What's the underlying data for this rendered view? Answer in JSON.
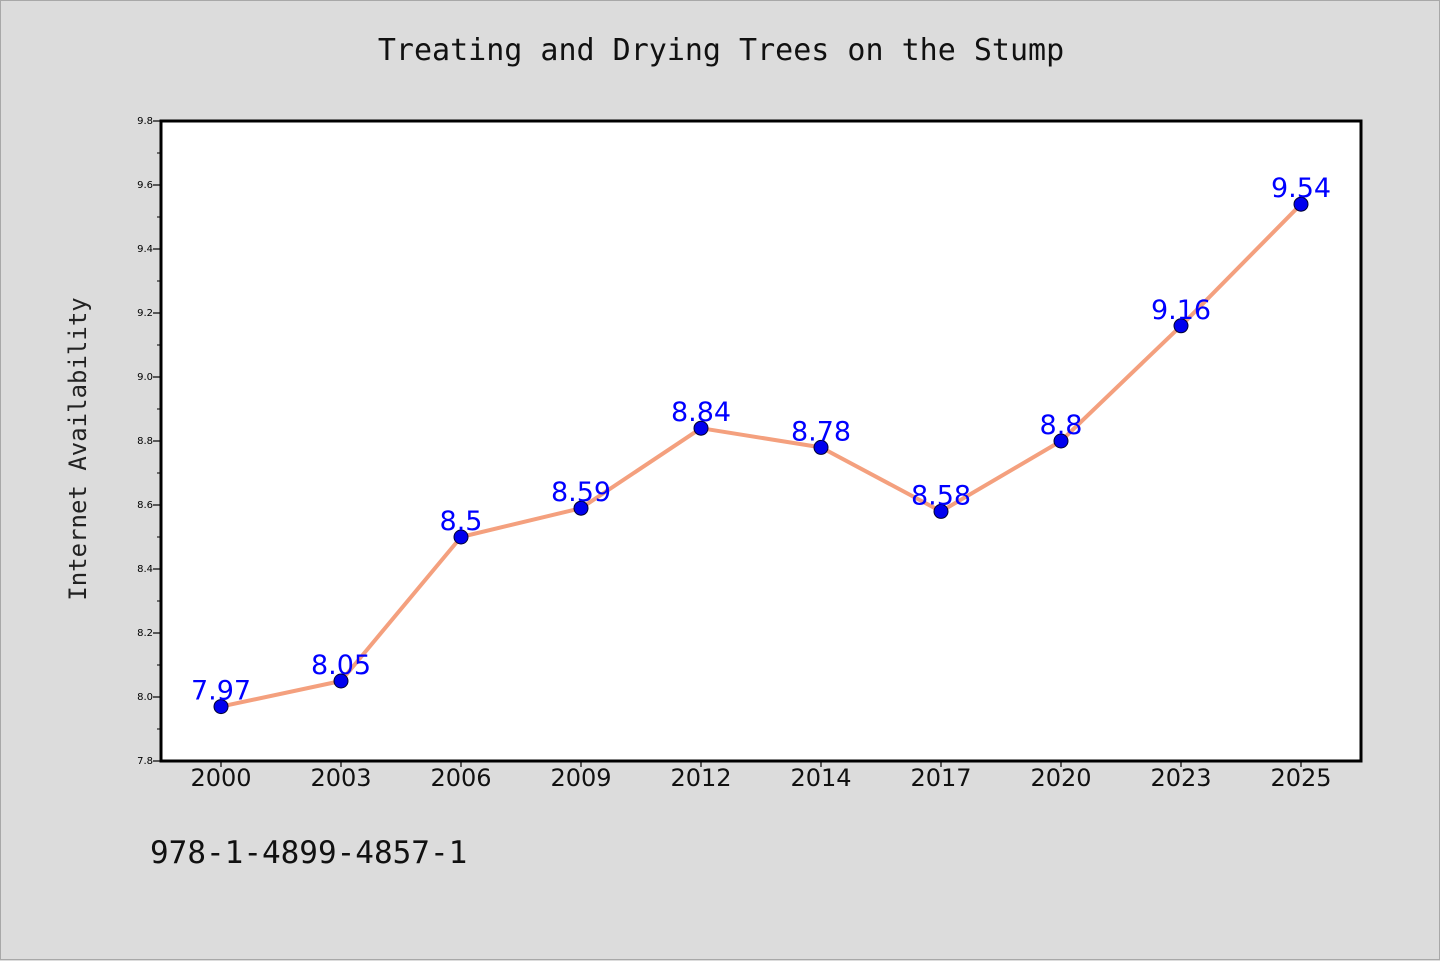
{
  "chart_data": {
    "type": "line",
    "title": "Treating and Drying Trees on the Stump",
    "xlabel": "",
    "ylabel": "Internet Availability",
    "categories": [
      "2000",
      "2003",
      "2006",
      "2009",
      "2012",
      "2014",
      "2017",
      "2020",
      "2023",
      "2025"
    ],
    "series": [
      {
        "values": [
          7.97,
          8.05,
          8.5,
          8.59,
          8.84,
          8.78,
          8.58,
          8.8,
          9.16,
          9.54
        ],
        "data_labels": [
          "7.97",
          "8.05",
          "8.5",
          "8.59",
          "8.84",
          "8.78",
          "8.58",
          "8.8",
          "9.16",
          "9.54"
        ],
        "line_color": "#f4a07e",
        "marker_color": "#0000ee"
      }
    ],
    "ylim": [
      7.8,
      9.8
    ],
    "yticks": [
      "7.8",
      "8.0",
      "8.2",
      "8.4",
      "8.6",
      "8.8",
      "9.0",
      "9.2",
      "9.4",
      "9.6",
      "9.8"
    ],
    "grid": false,
    "label_color": "#0000ff",
    "plot_background": "#ffffff",
    "figure_background": "#dcdcdc"
  },
  "footer": {
    "code": "978-1-4899-4857-1"
  }
}
